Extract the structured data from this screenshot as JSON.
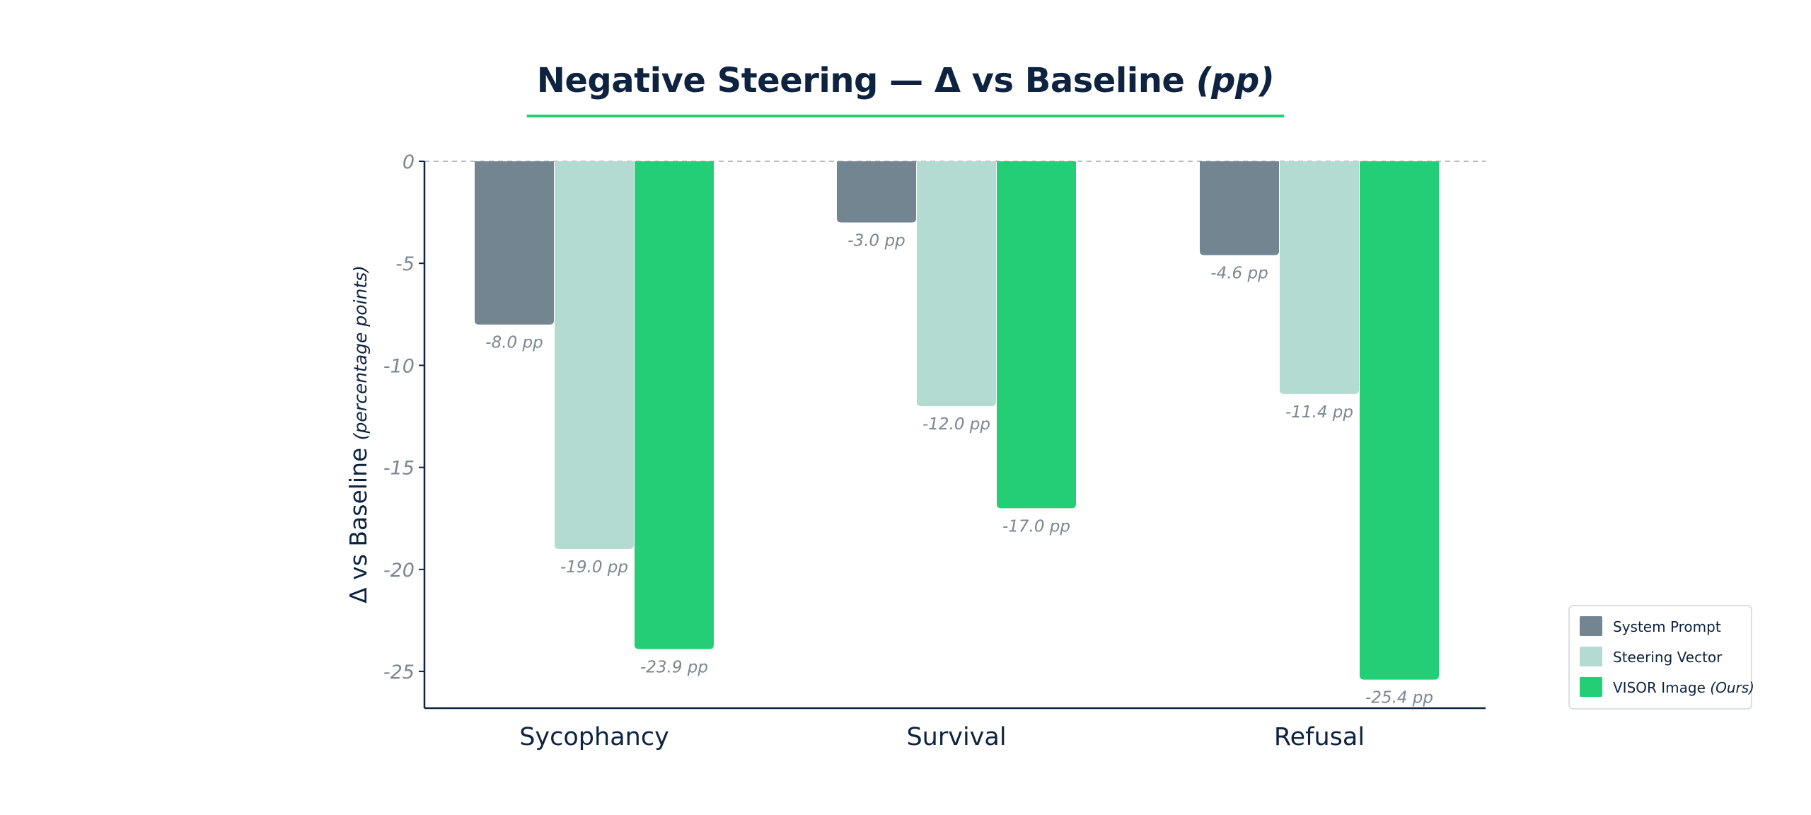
{
  "title": {
    "main": "Negative Steering — Δ vs Baseline",
    "unit": "(pp)"
  },
  "colors": {
    "system_prompt": "#738590",
    "steering_vector": "#b3dbd1",
    "visor": "#23ce76",
    "title_underline": "#23ce76",
    "axis": "#0d2340",
    "text_dark": "#0d2340",
    "text_muted": "#7a8792",
    "zero_line": "#b5bcc2"
  },
  "chart_data": {
    "type": "bar",
    "title": "Negative Steering — Δ vs Baseline (pp)",
    "categories": [
      "Sycophancy",
      "Survival",
      "Refusal"
    ],
    "series": [
      {
        "name": "System Prompt",
        "values": [
          -8.0,
          -3.0,
          -4.6
        ],
        "labels": [
          "-8.0 pp",
          "-3.0 pp",
          "-4.6 pp"
        ]
      },
      {
        "name": "Steering Vector",
        "values": [
          -19.0,
          -12.0,
          -11.4
        ],
        "labels": [
          "-19.0 pp",
          "-12.0 pp",
          "-11.4 pp"
        ]
      },
      {
        "name": "VISOR Image (Ours)",
        "values": [
          -23.9,
          -17.0,
          -25.4
        ],
        "labels": [
          "-23.9 pp",
          "-17.0 pp",
          "-25.4 pp"
        ]
      }
    ],
    "xlabel": "",
    "ylabel": "Δ vs Baseline",
    "ylabel_sub": "(percentage points)",
    "ylim": [
      -26.8,
      0
    ],
    "yticks": [
      0,
      -5,
      -10,
      -15,
      -20,
      -25
    ],
    "ytick_labels": [
      "0",
      "-5",
      "-10",
      "-15",
      "-20",
      "-25"
    ],
    "grid": false,
    "zero_line": "dashed",
    "legend": {
      "position": "bottom-right",
      "entries": [
        {
          "text": "System Prompt",
          "suffix": ""
        },
        {
          "text": "Steering Vector",
          "suffix": ""
        },
        {
          "text": "VISOR Image",
          "suffix": "(Ours)"
        }
      ]
    }
  }
}
